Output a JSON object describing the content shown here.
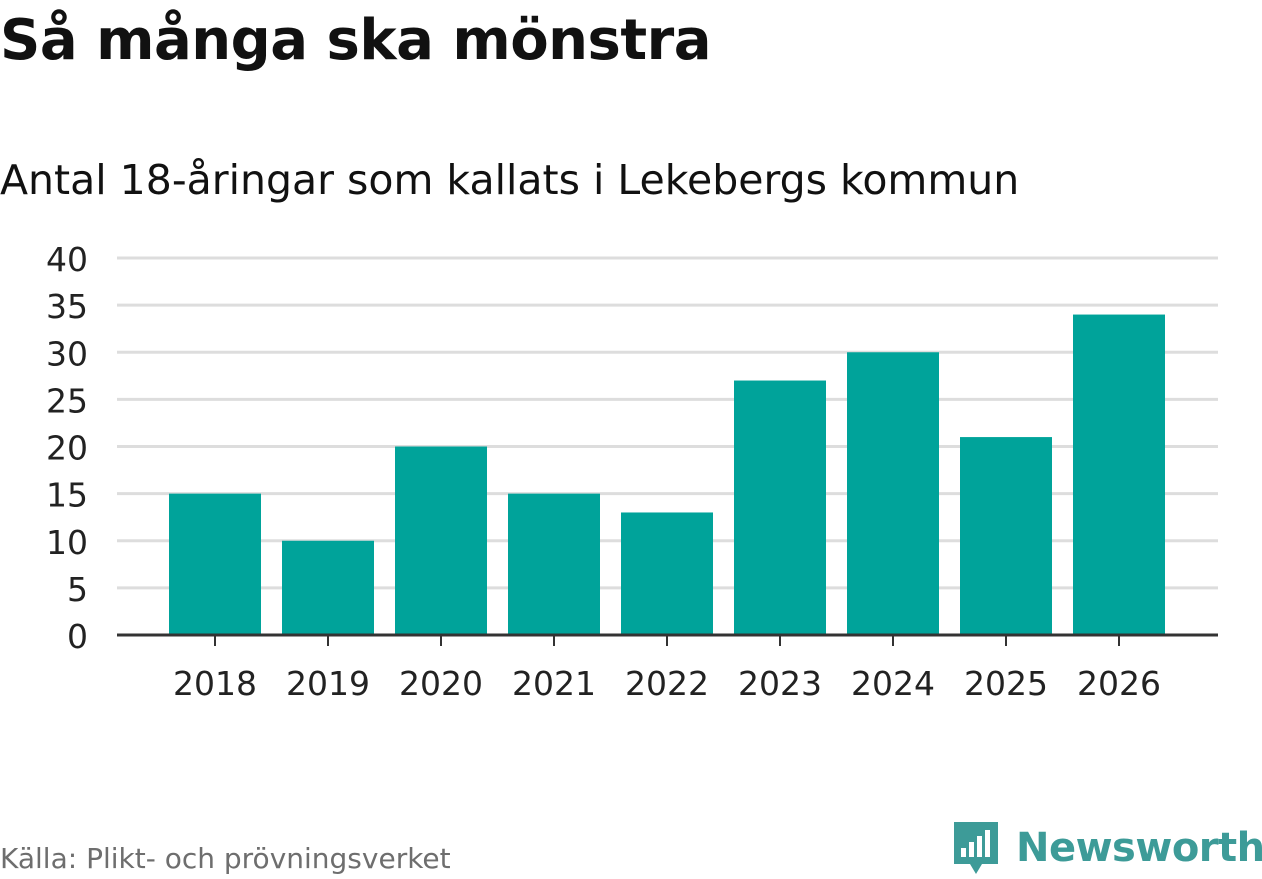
{
  "title": "Så många ska mönstra",
  "subtitle": "Antal 18-åringar som kallats i Lekebergs kommun",
  "source": "Källa: Plikt- och prövningsverket",
  "brand": {
    "name": "Newsworthy",
    "icon": "newsworthy-logo-icon"
  },
  "colors": {
    "bar": "#00a39a",
    "grid": "#dddddd",
    "axis": "#333333",
    "brand": "#3d9b98"
  },
  "chart_data": {
    "type": "bar",
    "title": "Så många ska mönstra",
    "subtitle": "Antal 18-åringar som kallats i Lekebergs kommun",
    "categories": [
      "2018",
      "2019",
      "2020",
      "2021",
      "2022",
      "2023",
      "2024",
      "2025",
      "2026"
    ],
    "values": [
      15,
      10,
      20,
      15,
      13,
      27,
      30,
      21,
      34
    ],
    "ylim": [
      0,
      40
    ],
    "yticks": [
      0,
      5,
      10,
      15,
      20,
      25,
      30,
      35,
      40
    ],
    "xlabel": "",
    "ylabel": "",
    "grid": true
  }
}
